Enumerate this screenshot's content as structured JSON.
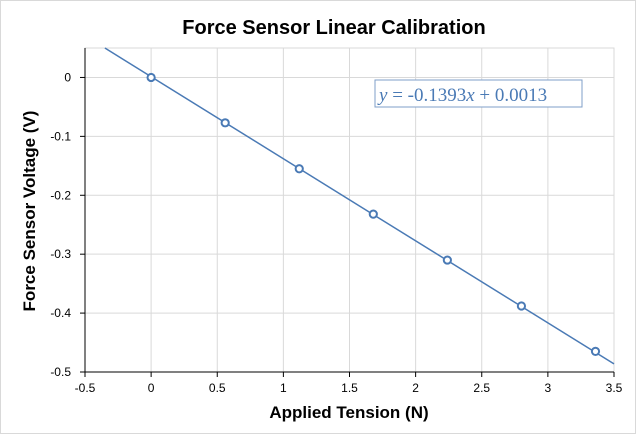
{
  "chart_data": {
    "type": "scatter",
    "title": "Force Sensor Linear Calibration",
    "xlabel": "Applied Tension (N)",
    "ylabel": "Force Sensor Voltage (V)",
    "xlim": [
      -0.5,
      3.5
    ],
    "ylim": [
      -0.5,
      0.05
    ],
    "x_ticks": [
      -0.5,
      0,
      0.5,
      1,
      1.5,
      2,
      2.5,
      3,
      3.5
    ],
    "y_ticks": [
      0,
      -0.1,
      -0.2,
      -0.3,
      -0.4,
      -0.5
    ],
    "x_tick_labels": [
      "-0.5",
      "0",
      "0.5",
      "1",
      "1.5",
      "2",
      "2.5",
      "3",
      "3.5"
    ],
    "y_tick_labels": [
      "0",
      "-0.1",
      "-0.2",
      "-0.3",
      "-0.4",
      "-0.5"
    ],
    "grid": true,
    "series": [
      {
        "marker": "open-circle",
        "color": "#4a7ab5",
        "x": [
          0,
          0.56,
          1.12,
          1.68,
          2.24,
          2.8,
          3.36
        ],
        "y": [
          0.0,
          -0.077,
          -0.155,
          -0.232,
          -0.31,
          -0.388,
          -0.465
        ]
      }
    ],
    "trendline": {
      "type": "linear",
      "slope": -0.1393,
      "intercept": 0.0013,
      "color": "#4a7ab5",
      "equation_text": {
        "prefix": "y",
        "middle": " = -0.1393",
        "var": "x",
        "suffix": " + 0.0013"
      }
    }
  }
}
